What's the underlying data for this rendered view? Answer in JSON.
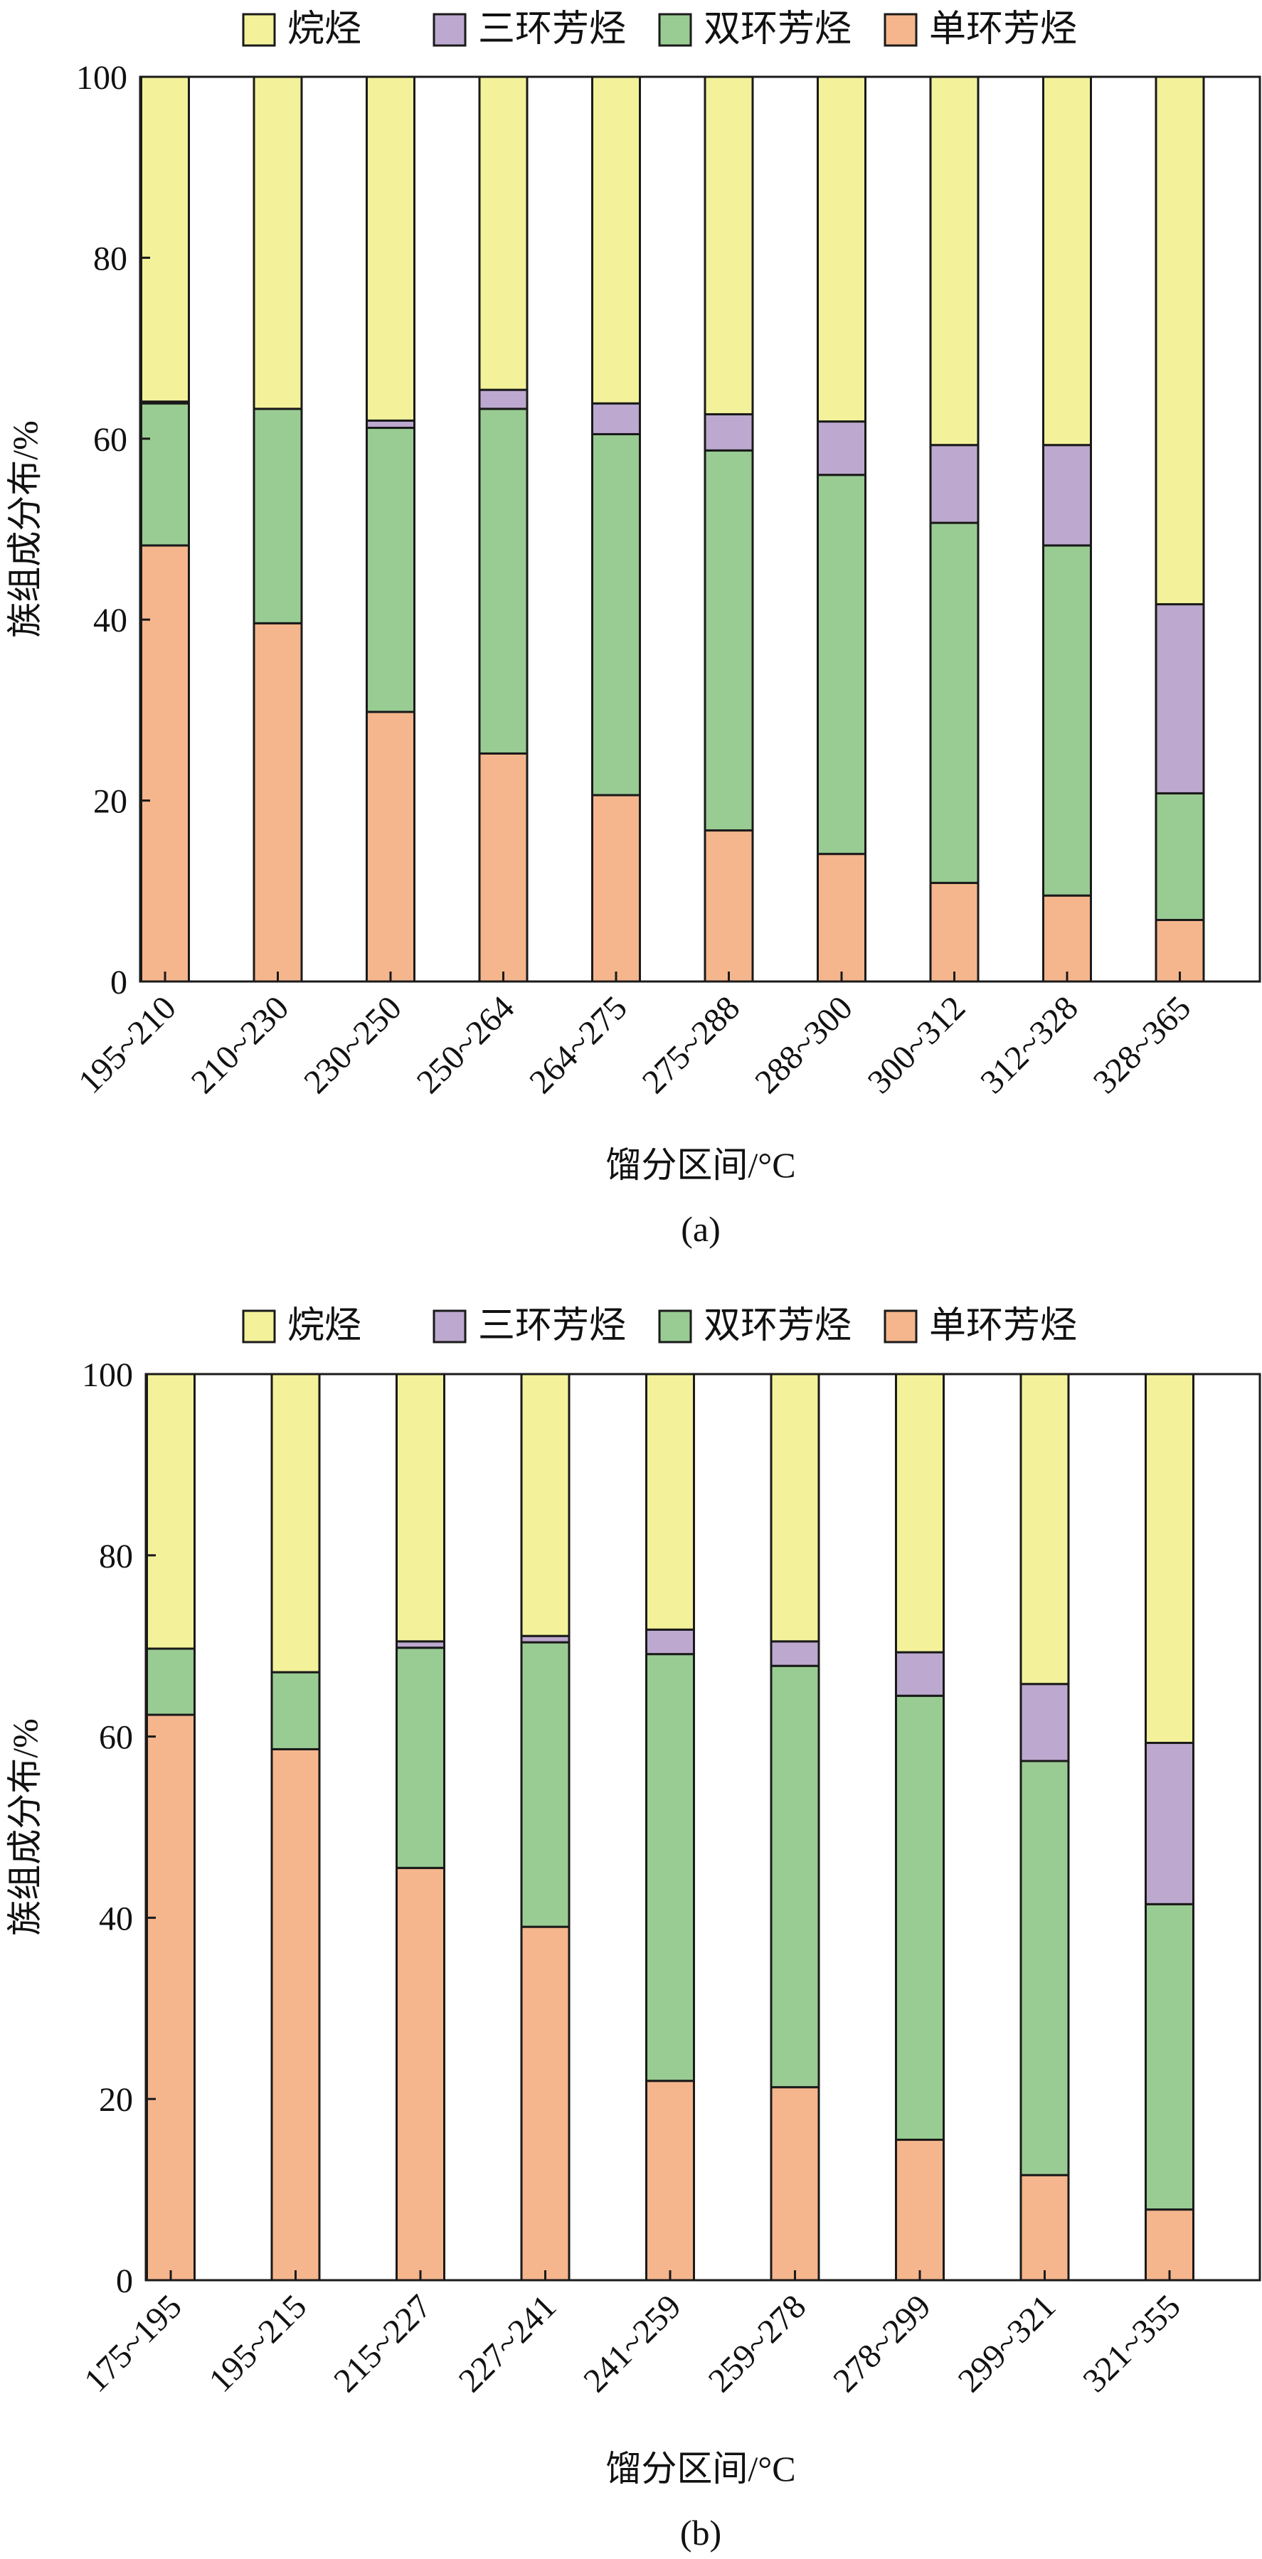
{
  "chart_data": [
    {
      "type": "bar",
      "stacked": true,
      "panel_label": "(a)",
      "xlabel": "馏分区间/°C",
      "ylabel": "族组成分布/%",
      "ylim": [
        0,
        100
      ],
      "yticks": [
        0,
        20,
        40,
        60,
        80,
        100
      ],
      "legend_position": "top",
      "categories": [
        "195~210",
        "210~230",
        "230~250",
        "250~264",
        "264~275",
        "275~288",
        "288~300",
        "300~312",
        "312~328",
        "328~365"
      ],
      "series": [
        {
          "name": "单环芳烃",
          "color": "#f5b68d",
          "values": [
            48.2,
            39.6,
            29.8,
            25.2,
            20.6,
            16.7,
            14.1,
            10.9,
            9.5,
            6.8
          ]
        },
        {
          "name": "双环芳烃",
          "color": "#99cc93",
          "values": [
            15.7,
            23.7,
            31.4,
            38.1,
            39.9,
            42.0,
            41.9,
            39.8,
            38.7,
            14.0
          ]
        },
        {
          "name": "三环芳烃",
          "color": "#bda9cf",
          "values": [
            0.2,
            0,
            0.8,
            2.1,
            3.4,
            4.0,
            5.9,
            8.6,
            11.1,
            20.9
          ]
        },
        {
          "name": "烷烃",
          "color": "#f3f29b",
          "values": [
            35.9,
            36.7,
            38.0,
            34.6,
            36.1,
            37.3,
            38.1,
            40.7,
            40.7,
            58.3
          ]
        }
      ]
    },
    {
      "type": "bar",
      "stacked": true,
      "panel_label": "(b)",
      "xlabel": "馏分区间/°C",
      "ylabel": "族组成分布/%",
      "ylim": [
        0,
        100
      ],
      "yticks": [
        0,
        20,
        40,
        60,
        80,
        100
      ],
      "legend_position": "top",
      "categories": [
        "175~195",
        "195~215",
        "215~227",
        "227~241",
        "241~259",
        "259~278",
        "278~299",
        "299~321",
        "321~355"
      ],
      "series": [
        {
          "name": "单环芳烃",
          "color": "#f5b68d",
          "values": [
            62.4,
            58.6,
            45.5,
            39.0,
            22.0,
            21.3,
            15.5,
            11.6,
            7.8
          ]
        },
        {
          "name": "双环芳烃",
          "color": "#99cc93",
          "values": [
            7.3,
            8.5,
            24.3,
            31.4,
            47.1,
            46.5,
            49.0,
            45.7,
            33.7
          ]
        },
        {
          "name": "三环芳烃",
          "color": "#bda9cf",
          "values": [
            0,
            0,
            0.7,
            0.7,
            2.7,
            2.7,
            4.8,
            8.5,
            17.8
          ]
        },
        {
          "name": "烷烃",
          "color": "#f3f29b",
          "values": [
            30.3,
            32.9,
            29.5,
            28.9,
            28.2,
            29.5,
            30.7,
            34.2,
            40.7
          ]
        }
      ]
    }
  ]
}
